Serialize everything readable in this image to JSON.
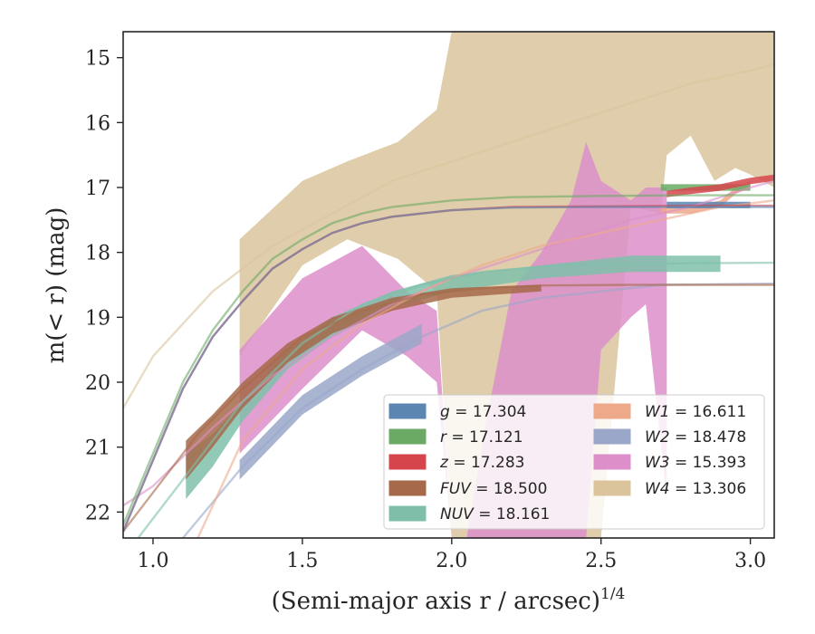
{
  "chart_data": {
    "type": "line",
    "xlabel": "(Semi-major axis r / arcsec)",
    "xlabel_exponent": "1/4",
    "ylabel": "m(< r) (mag)",
    "xlim": [
      0.9,
      3.08
    ],
    "ylim": [
      22.4,
      14.6
    ],
    "y_inverted": true,
    "grid": false,
    "legend_position": "lower-right",
    "xticks": [
      {
        "value": 1.0,
        "label": "1.0"
      },
      {
        "value": 1.5,
        "label": "1.5"
      },
      {
        "value": 2.0,
        "label": "2.0"
      },
      {
        "value": 2.5,
        "label": "2.5"
      },
      {
        "value": 3.0,
        "label": "3.0"
      }
    ],
    "yticks": [
      {
        "value": 15,
        "label": "15"
      },
      {
        "value": 16,
        "label": "16"
      },
      {
        "value": 17,
        "label": "17"
      },
      {
        "value": 18,
        "label": "18"
      },
      {
        "value": 19,
        "label": "19"
      },
      {
        "value": 20,
        "label": "20"
      },
      {
        "value": 21,
        "label": "21"
      },
      {
        "value": 22,
        "label": "22"
      }
    ],
    "series": [
      {
        "name": "W4",
        "legend_label": "W4 = 13.306",
        "color": "#dbc49c",
        "band_x": [
          1.29,
          1.5,
          1.65,
          1.82,
          1.95,
          2.0,
          2.02,
          2.2,
          2.4,
          2.46,
          2.5,
          2.6,
          2.7,
          2.72,
          2.8,
          2.88,
          2.95,
          3.0,
          3.08
        ],
        "band_upper": [
          17.8,
          16.9,
          16.6,
          16.3,
          15.8,
          14.6,
          14.6,
          14.6,
          14.6,
          14.6,
          14.6,
          14.6,
          14.6,
          14.6,
          14.6,
          14.6,
          14.6,
          14.6,
          14.6
        ],
        "band_lower": [
          19.6,
          18.2,
          17.8,
          18.1,
          18.6,
          22.4,
          22.4,
          22.4,
          22.4,
          22.4,
          22.4,
          17.3,
          17.4,
          16.5,
          16.2,
          16.9,
          16.7,
          16.8,
          17.0
        ],
        "model_x": [
          0.9,
          1.0,
          1.2,
          1.4,
          1.6,
          1.8,
          2.0,
          2.2,
          2.4,
          2.6,
          2.8,
          3.0,
          3.08
        ],
        "model_y": [
          20.4,
          19.6,
          18.6,
          17.9,
          17.4,
          16.9,
          16.6,
          16.3,
          16.0,
          15.7,
          15.4,
          15.2,
          15.1
        ]
      },
      {
        "name": "W3",
        "legend_label": "W3 = 15.393",
        "color": "#dc8fc9",
        "band_x": [
          1.29,
          1.5,
          1.7,
          1.85,
          1.95,
          2.0,
          2.05,
          2.12,
          2.2,
          2.3,
          2.4,
          2.45,
          2.5,
          2.6,
          2.65,
          2.72
        ],
        "band_upper": [
          19.5,
          18.4,
          17.9,
          18.6,
          18.9,
          22.4,
          22.4,
          20.5,
          18.6,
          18.0,
          17.2,
          16.3,
          16.9,
          17.2,
          17.0,
          17.0
        ],
        "band_lower": [
          21.1,
          20.1,
          19.2,
          19.6,
          20.0,
          22.4,
          22.4,
          22.4,
          22.4,
          22.4,
          22.4,
          22.4,
          19.5,
          19.0,
          18.8,
          21.8
        ],
        "model_x": [
          0.9,
          1.0,
          1.2,
          1.4,
          1.6,
          1.8,
          2.0,
          2.2,
          2.4,
          2.6,
          2.8,
          3.0,
          3.08
        ],
        "model_y": [
          21.9,
          21.6,
          20.7,
          19.9,
          19.3,
          18.8,
          18.4,
          18.1,
          17.8,
          17.5,
          17.3,
          17.0,
          16.9
        ]
      },
      {
        "name": "W2",
        "legend_label": "W2 = 18.478",
        "color": "#9aa7c9",
        "band_x": [
          1.29,
          1.5,
          1.7,
          1.9
        ],
        "band_upper": [
          21.2,
          20.2,
          19.6,
          19.1
        ],
        "band_lower": [
          21.5,
          20.5,
          19.9,
          19.4
        ],
        "model_x": [
          1.1,
          1.3,
          1.5,
          1.7,
          1.9,
          2.1,
          2.3,
          2.5,
          2.7,
          3.08
        ],
        "model_y": [
          22.4,
          21.3,
          20.4,
          19.8,
          19.3,
          18.9,
          18.7,
          18.6,
          18.5,
          18.48
        ]
      },
      {
        "name": "W1",
        "legend_label": "W1 = 16.611",
        "color": "#eea88a",
        "band_x": [
          2.7,
          2.8,
          2.9,
          2.95,
          3.0
        ],
        "band_upper": [
          17.3,
          17.3,
          17.2,
          17.0,
          16.9
        ],
        "band_lower": [
          17.4,
          17.4,
          17.3,
          17.1,
          17.0
        ],
        "model_x": [
          1.15,
          1.3,
          1.5,
          1.7,
          1.9,
          2.1,
          2.3,
          2.5,
          2.7,
          2.9,
          3.08
        ],
        "model_y": [
          22.4,
          20.9,
          19.8,
          19.1,
          18.6,
          18.2,
          17.9,
          17.7,
          17.5,
          17.3,
          17.2
        ]
      },
      {
        "name": "NUV",
        "legend_label": "NUV = 18.161",
        "color": "#7fbfaa",
        "band_x": [
          1.11,
          1.2,
          1.3,
          1.45,
          1.6,
          1.8,
          2.0,
          2.3,
          2.6,
          2.9
        ],
        "band_upper": [
          21.1,
          20.8,
          20.3,
          19.5,
          19.0,
          18.6,
          18.35,
          18.2,
          18.05,
          18.05
        ],
        "band_lower": [
          21.8,
          21.3,
          20.6,
          19.8,
          19.3,
          18.85,
          18.6,
          18.4,
          18.3,
          18.3
        ],
        "model_x": [
          0.95,
          1.1,
          1.3,
          1.5,
          1.7,
          1.9,
          2.1,
          2.3,
          2.5,
          2.7,
          3.08
        ],
        "model_y": [
          22.4,
          21.5,
          20.3,
          19.4,
          18.8,
          18.5,
          18.3,
          18.22,
          18.18,
          18.17,
          18.16
        ]
      },
      {
        "name": "FUV",
        "legend_label": "FUV = 18.500",
        "color": "#a6694a",
        "band_x": [
          1.11,
          1.2,
          1.3,
          1.45,
          1.6,
          1.8,
          2.0,
          2.3
        ],
        "band_upper": [
          20.9,
          20.5,
          20.0,
          19.4,
          19.0,
          18.7,
          18.55,
          18.5
        ],
        "band_lower": [
          21.5,
          21.0,
          20.4,
          19.7,
          19.25,
          18.9,
          18.7,
          18.6
        ],
        "model_x": [
          0.9,
          1.0,
          1.15,
          1.3,
          1.5,
          1.7,
          1.9,
          2.1,
          2.3,
          2.6,
          3.08
        ],
        "model_y": [
          22.3,
          21.7,
          20.8,
          20.1,
          19.3,
          18.9,
          18.65,
          18.55,
          18.51,
          18.5,
          18.5
        ]
      },
      {
        "name": "r",
        "legend_label": "r = 17.121",
        "color": "#6aaa64",
        "band_x": [
          2.7,
          2.8,
          2.9,
          3.0
        ],
        "band_upper": [
          16.95,
          16.95,
          16.95,
          16.95
        ],
        "band_lower": [
          17.05,
          17.05,
          17.05,
          17.05
        ],
        "model_x": [
          0.9,
          1.0,
          1.1,
          1.2,
          1.3,
          1.4,
          1.5,
          1.6,
          1.7,
          1.8,
          2.0,
          2.2,
          2.5,
          2.8,
          3.08
        ],
        "model_y": [
          22.2,
          21.1,
          20.0,
          19.2,
          18.6,
          18.1,
          17.8,
          17.55,
          17.4,
          17.3,
          17.2,
          17.15,
          17.13,
          17.12,
          17.12
        ]
      },
      {
        "name": "z",
        "legend_label": "z = 17.283",
        "color": "#d6454b",
        "band_x": [
          2.72,
          2.8,
          2.9,
          3.0,
          3.08
        ],
        "band_upper": [
          17.05,
          17.0,
          16.95,
          16.85,
          16.8
        ],
        "band_lower": [
          17.15,
          17.1,
          17.05,
          16.95,
          16.9
        ],
        "model_x": [
          0.9,
          1.0,
          1.1,
          1.2,
          1.3,
          1.4,
          1.5,
          1.6,
          1.7,
          1.8,
          2.0,
          2.2,
          2.5,
          2.8,
          3.08
        ],
        "model_y": [
          22.3,
          21.2,
          20.1,
          19.3,
          18.75,
          18.25,
          17.95,
          17.7,
          17.55,
          17.45,
          17.35,
          17.3,
          17.29,
          17.28,
          17.28
        ]
      },
      {
        "name": "g",
        "legend_label": "g = 17.304",
        "color": "#5b86b2",
        "band_x": [
          2.72,
          2.8,
          2.9,
          3.0
        ],
        "band_upper": [
          17.22,
          17.22,
          17.22,
          17.22
        ],
        "band_lower": [
          17.32,
          17.32,
          17.32,
          17.32
        ],
        "model_x": [
          0.9,
          1.0,
          1.1,
          1.2,
          1.3,
          1.4,
          1.5,
          1.6,
          1.7,
          1.8,
          2.0,
          2.2,
          2.5,
          2.8,
          3.08
        ],
        "model_y": [
          22.3,
          21.2,
          20.1,
          19.3,
          18.75,
          18.25,
          17.95,
          17.7,
          17.55,
          17.45,
          17.35,
          17.31,
          17.3,
          17.3,
          17.3
        ]
      }
    ],
    "legend": {
      "columns": [
        [
          "g = 17.304",
          "r = 17.121",
          "z = 17.283",
          "FUV = 18.500",
          "NUV = 18.161"
        ],
        [
          "W1 = 16.611",
          "W2 = 18.478",
          "W3 = 15.393",
          "W4 = 13.306"
        ]
      ]
    }
  }
}
